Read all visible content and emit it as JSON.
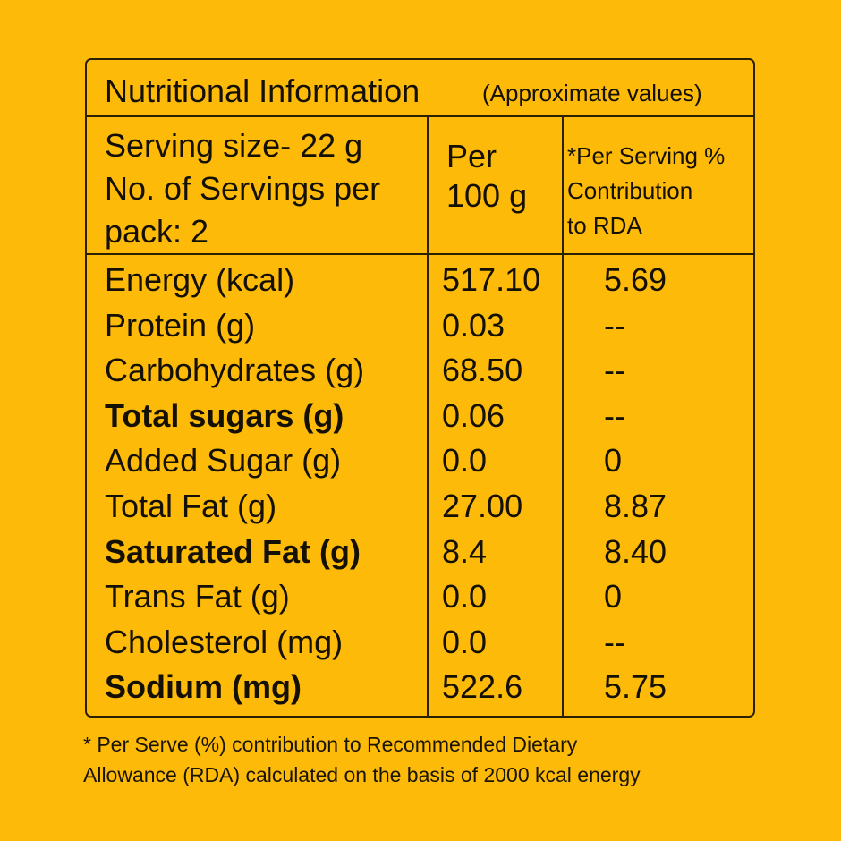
{
  "title": "Nutritional Information",
  "subtitle": "(Approximate values)",
  "serving_info": "Serving size- 22 g\nNo. of Servings per\npack: 2",
  "column_per_100g": "Per\n100 g",
  "column_rda": "*Per Serving %\nContribution\nto RDA",
  "nutrients": [
    {
      "name": "Energy (kcal)",
      "per_100g": "517.10",
      "rda": "5.69"
    },
    {
      "name": "Protein (g)",
      "per_100g": "0.03",
      "rda": "--"
    },
    {
      "name": "Carbohydrates (g)",
      "per_100g": "68.50",
      "rda": "--"
    },
    {
      "name": "Total sugars (g)",
      "per_100g": "0.06",
      "rda": "--"
    },
    {
      "name": "Added Sugar (g)",
      "per_100g": "0.0",
      "rda": "0"
    },
    {
      "name": "Total Fat (g)",
      "per_100g": "27.00",
      "rda": "8.87"
    },
    {
      "name": "Saturated Fat (g)",
      "per_100g": "8.4",
      "rda": "8.40"
    },
    {
      "name": "Trans Fat (g)",
      "per_100g": "0.0",
      "rda": "0"
    },
    {
      "name": "Cholesterol (mg)",
      "per_100g": "0.0",
      "rda": "--"
    },
    {
      "name": "Sodium (mg)",
      "per_100g": "522.6",
      "rda": "5.75"
    }
  ],
  "footnote": "* Per Serve (%) contribution to Recommended Dietary\n Allowance (RDA) calculated on the basis of 2000 kcal energy",
  "colors": {
    "background": "#fdba09",
    "text": "#141004",
    "border": "#2a2004"
  }
}
